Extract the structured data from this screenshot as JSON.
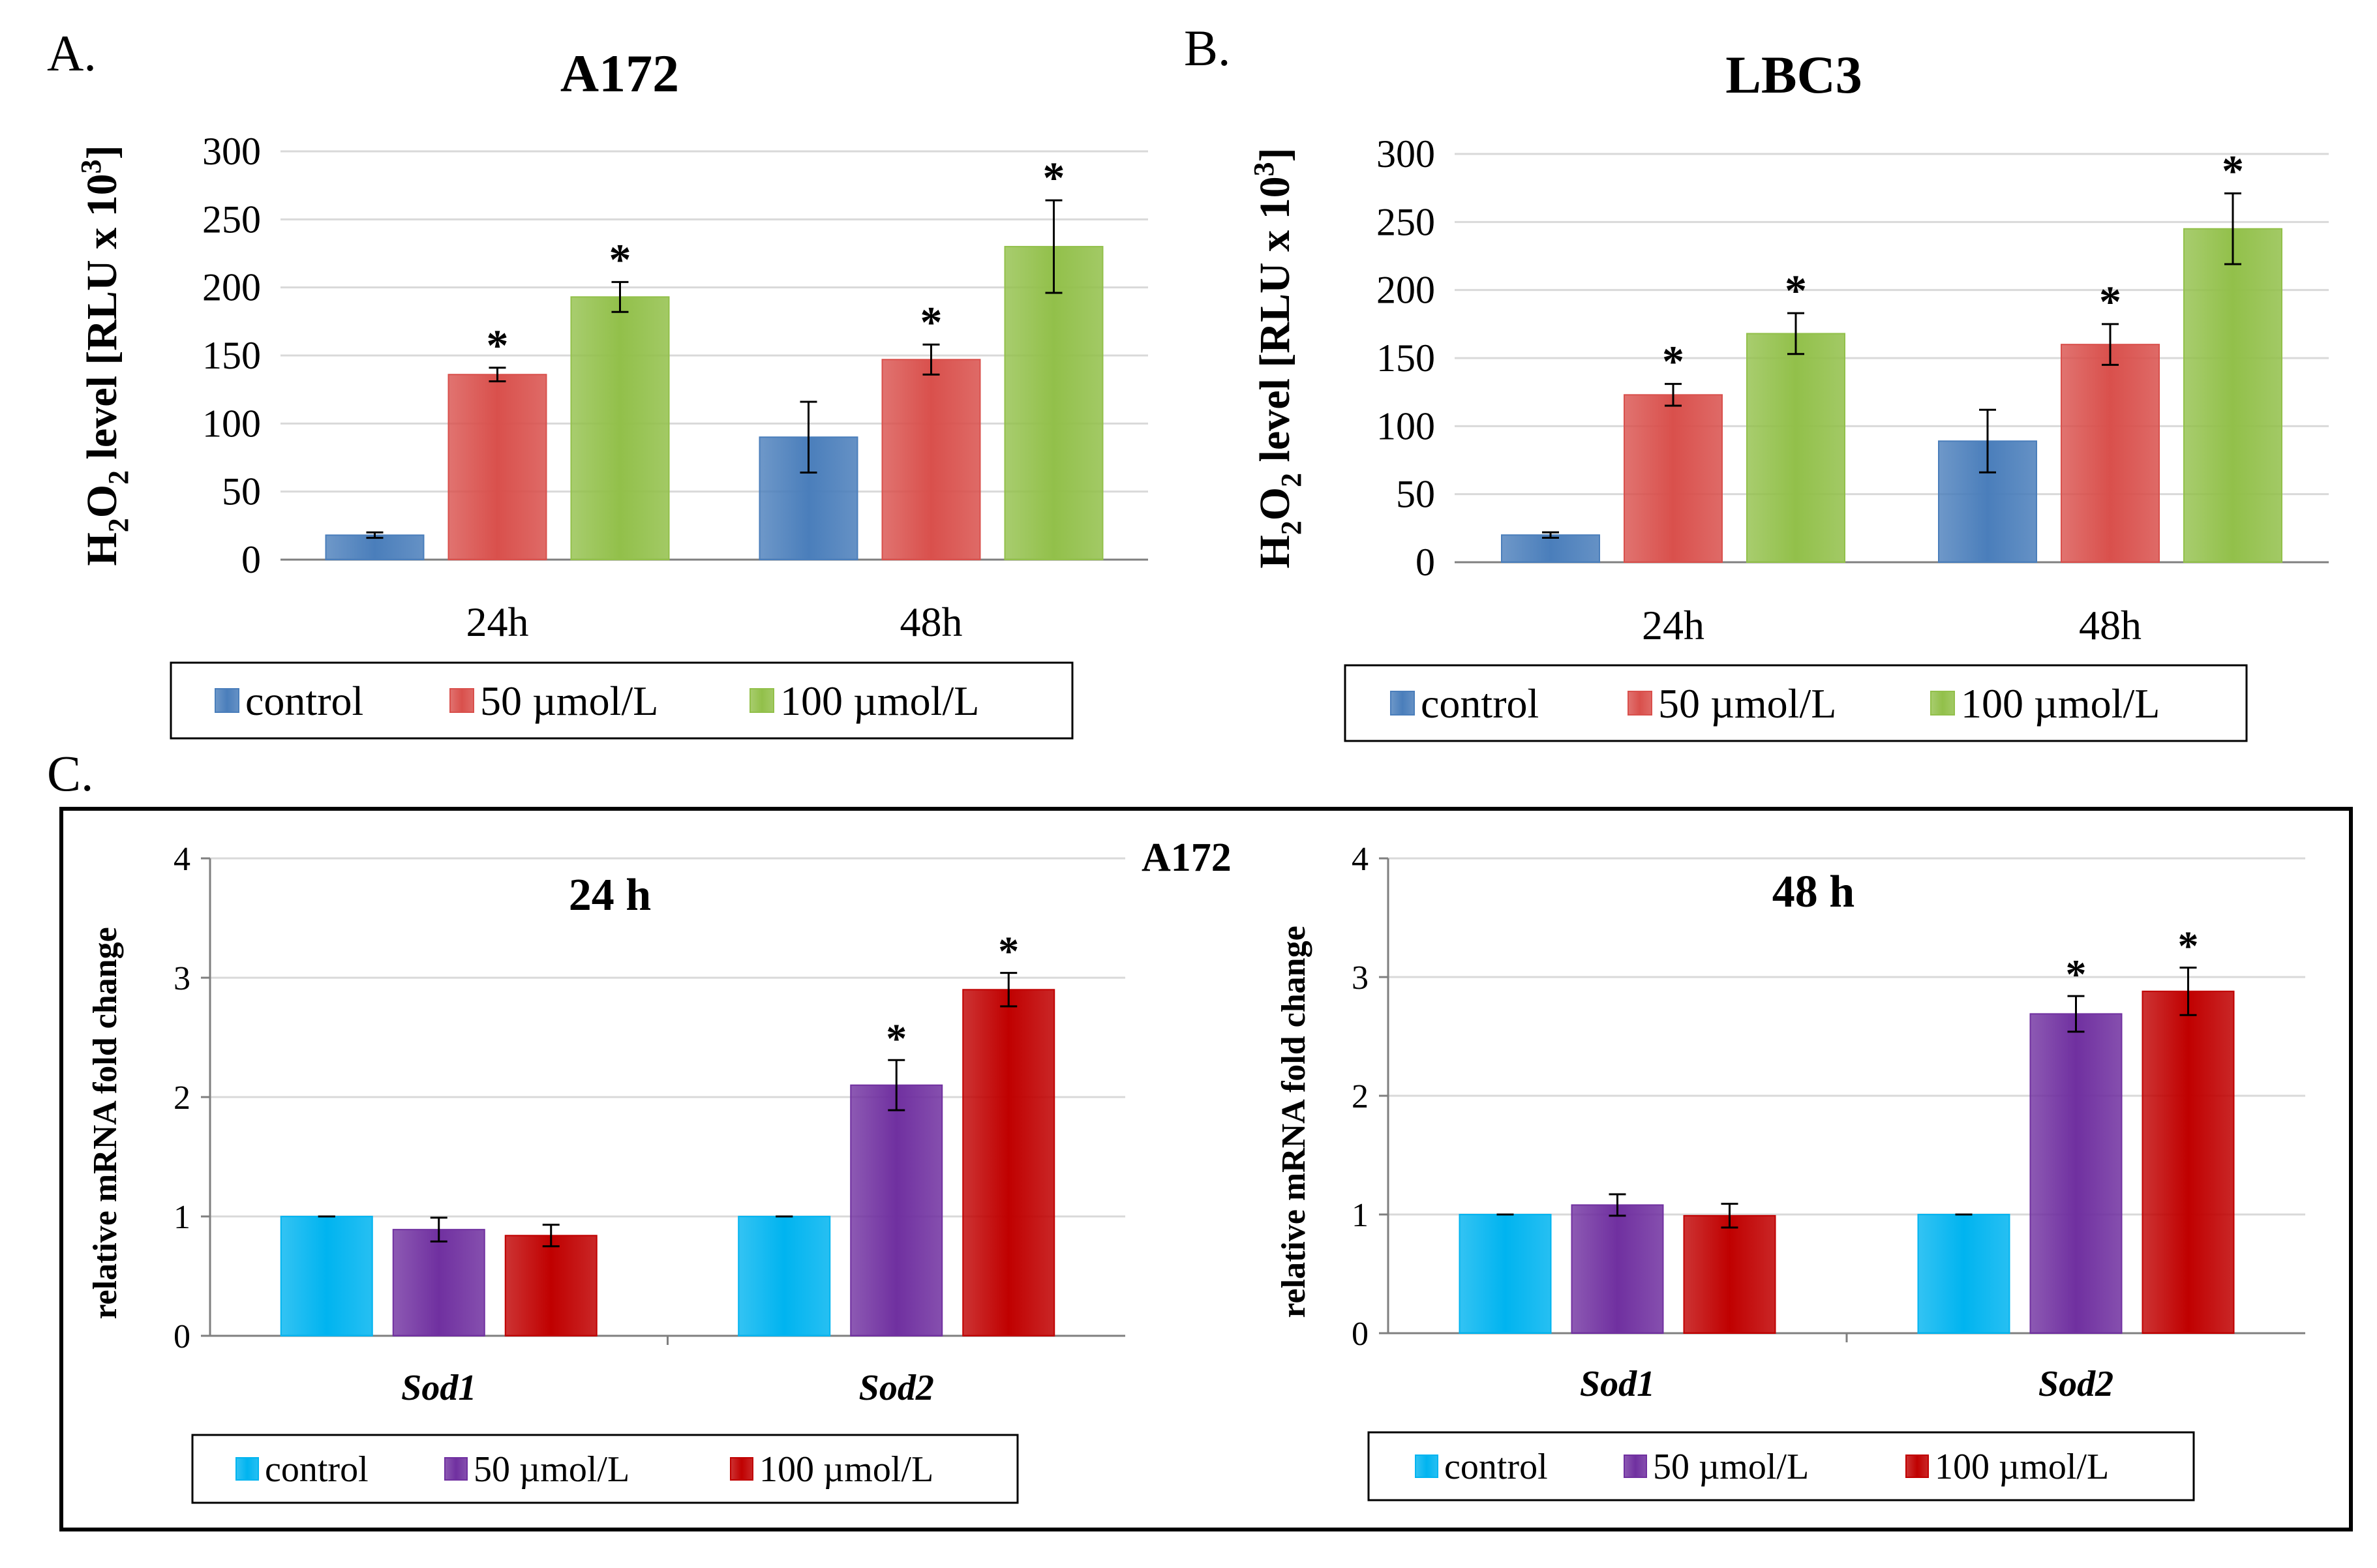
{
  "panels": {
    "a_letter": "A.",
    "b_letter": "B.",
    "c_letter": "C.",
    "c_cell_line": "A172"
  },
  "colors": {
    "control_ab": "#4a7ebb",
    "m50_ab": "#d9504c",
    "m100_ab": "#92c04a",
    "control_c": "#00b4f0",
    "m50_c": "#7030a0",
    "m100_c": "#c00000",
    "grid": "#d9d9d9"
  },
  "chart_data": [
    {
      "id": "A",
      "type": "bar",
      "title": "A172",
      "ylabel_main": "H",
      "ylabel_sub1": "2",
      "ylabel_mid": "O",
      "ylabel_sub2": "2",
      "ylabel_rest": " level [RLU x 10",
      "ylabel_sup": "3",
      "ylabel_end": "]",
      "ylim": [
        0,
        300
      ],
      "yticks": [
        0,
        50,
        100,
        150,
        200,
        250,
        300
      ],
      "categories": [
        "24h",
        "48h"
      ],
      "series": [
        {
          "name": "control",
          "values": [
            18,
            90
          ],
          "errors": [
            2,
            26
          ],
          "sig": [
            false,
            false
          ]
        },
        {
          "name": "50 µmol/L",
          "values": [
            136,
            147
          ],
          "errors": [
            5,
            11
          ],
          "sig": [
            true,
            true
          ]
        },
        {
          "name": "100 µmol/L",
          "values": [
            193,
            230
          ],
          "errors": [
            11,
            34
          ],
          "sig": [
            true,
            true
          ]
        }
      ],
      "sig_mark": "*",
      "legend": "bottom"
    },
    {
      "id": "B",
      "type": "bar",
      "title": "LBC3",
      "ylabel_main": "H",
      "ylabel_sub1": "2",
      "ylabel_mid": "O",
      "ylabel_sub2": "2",
      "ylabel_rest": " level [RLU x 10",
      "ylabel_sup": "3",
      "ylabel_end": "]",
      "ylim": [
        0,
        300
      ],
      "yticks": [
        0,
        50,
        100,
        150,
        200,
        250,
        300
      ],
      "categories": [
        "24h",
        "48h"
      ],
      "series": [
        {
          "name": "control",
          "values": [
            20,
            89
          ],
          "errors": [
            2,
            23
          ],
          "sig": [
            false,
            false
          ]
        },
        {
          "name": "50 µmol/L",
          "values": [
            123,
            160
          ],
          "errors": [
            8,
            15
          ],
          "sig": [
            true,
            true
          ]
        },
        {
          "name": "100 µmol/L",
          "values": [
            168,
            245
          ],
          "errors": [
            15,
            26
          ],
          "sig": [
            true,
            true
          ]
        }
      ],
      "sig_mark": "*",
      "legend": "bottom"
    },
    {
      "id": "C1",
      "type": "bar",
      "title": "24 h",
      "ylabel": "relative mRNA fold change",
      "ylim": [
        0,
        4
      ],
      "yticks": [
        0,
        1,
        2,
        3,
        4
      ],
      "categories": [
        "Sod1",
        "Sod2"
      ],
      "series": [
        {
          "name": "control",
          "values": [
            1.0,
            1.0
          ],
          "errors": [
            0.0,
            0.0
          ],
          "sig": [
            false,
            false
          ]
        },
        {
          "name": "50 µmol/L",
          "values": [
            0.89,
            2.1
          ],
          "errors": [
            0.1,
            0.21
          ],
          "sig": [
            false,
            true
          ]
        },
        {
          "name": "100 µmol/L",
          "values": [
            0.84,
            2.9
          ],
          "errors": [
            0.09,
            0.14
          ],
          "sig": [
            false,
            true
          ]
        }
      ],
      "sig_mark": "*",
      "legend": "bottom"
    },
    {
      "id": "C2",
      "type": "bar",
      "title": "48 h",
      "ylabel": "relative mRNA fold change",
      "ylim": [
        0,
        4
      ],
      "yticks": [
        0,
        1,
        2,
        3,
        4
      ],
      "categories": [
        "Sod1",
        "Sod2"
      ],
      "series": [
        {
          "name": "control",
          "values": [
            1.0,
            1.0
          ],
          "errors": [
            0.0,
            0.0
          ],
          "sig": [
            false,
            false
          ]
        },
        {
          "name": "50 µmol/L",
          "values": [
            1.08,
            2.69
          ],
          "errors": [
            0.09,
            0.15
          ],
          "sig": [
            false,
            true
          ]
        },
        {
          "name": "100 µmol/L",
          "values": [
            0.99,
            2.88
          ],
          "errors": [
            0.1,
            0.2
          ],
          "sig": [
            false,
            true
          ]
        }
      ],
      "sig_mark": "*",
      "legend": "bottom"
    }
  ]
}
